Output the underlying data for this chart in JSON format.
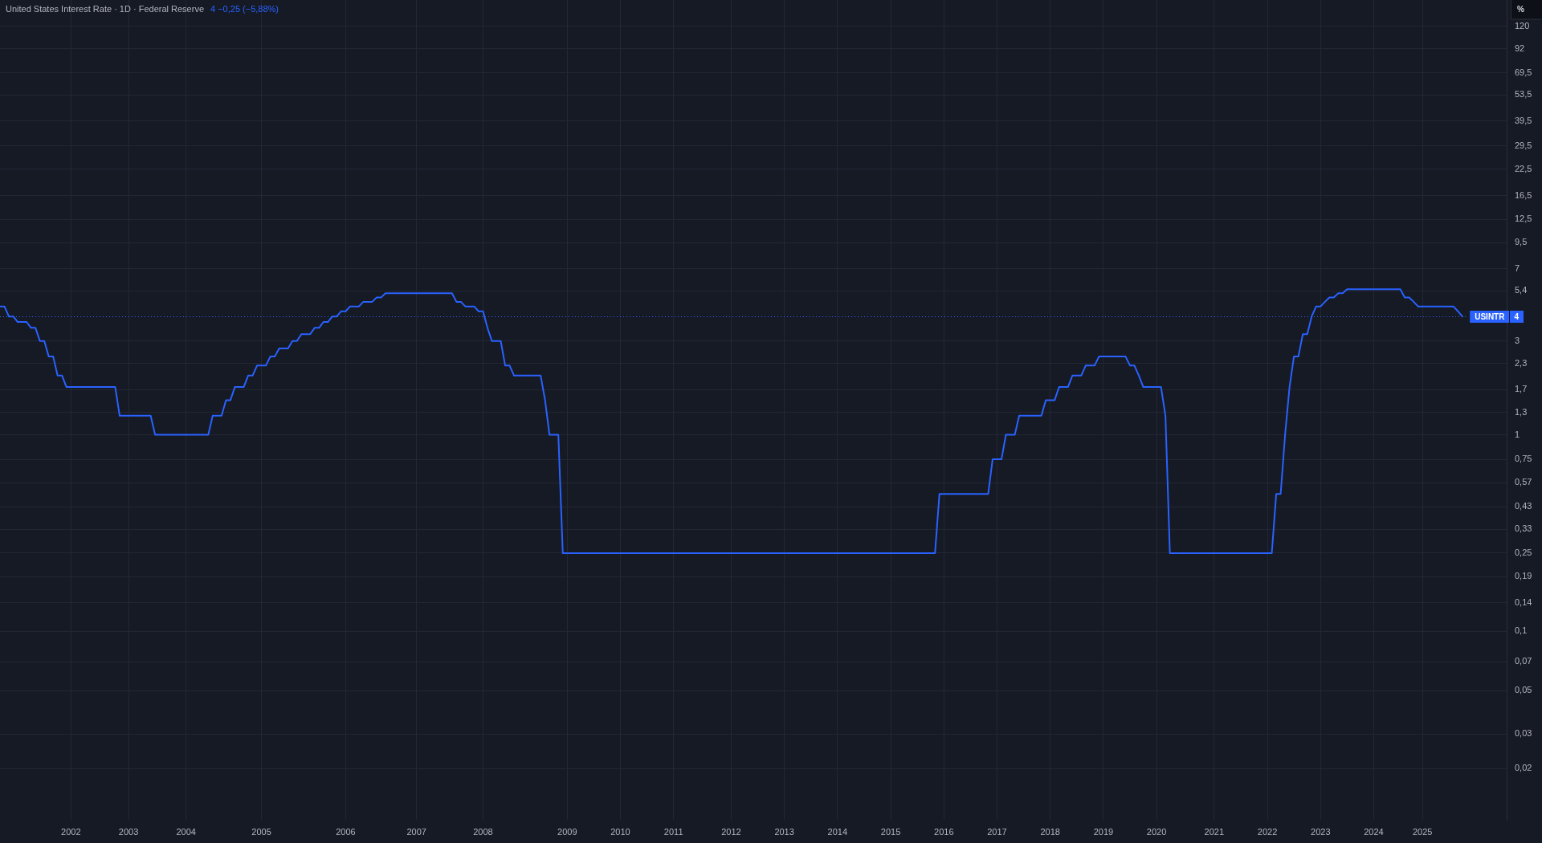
{
  "chart_data": {
    "type": "line",
    "title": "United States Interest Rate · 1D · Federal Reserve",
    "subtitle": "4 −0,25 (−5,88%)",
    "ylabel": "%",
    "categories": [
      null,
      null,
      null,
      null,
      null,
      null,
      null,
      null,
      null,
      null,
      null,
      null,
      null,
      null,
      null,
      null,
      "2002",
      null,
      null,
      null,
      null,
      null,
      null,
      null,
      null,
      null,
      null,
      null,
      null,
      "2003",
      null,
      null,
      null,
      null,
      null,
      null,
      null,
      null,
      null,
      null,
      null,
      null,
      "2004",
      null,
      null,
      null,
      null,
      null,
      null,
      null,
      null,
      null,
      null,
      null,
      null,
      null,
      null,
      null,
      null,
      "2005",
      null,
      null,
      null,
      null,
      null,
      null,
      null,
      null,
      null,
      null,
      null,
      null,
      null,
      null,
      null,
      null,
      null,
      null,
      "2006",
      null,
      null,
      null,
      null,
      null,
      null,
      null,
      null,
      null,
      null,
      null,
      null,
      null,
      null,
      null,
      "2007",
      null,
      null,
      null,
      null,
      null,
      null,
      null,
      null,
      null,
      null,
      null,
      null,
      null,
      null,
      "2008",
      null,
      null,
      null,
      null,
      null,
      null,
      null,
      null,
      null,
      null,
      null,
      null,
      null,
      null,
      null,
      null,
      null,
      null,
      "2009",
      null,
      null,
      null,
      null,
      null,
      null,
      null,
      null,
      null,
      null,
      null,
      "2010",
      null,
      null,
      null,
      null,
      null,
      null,
      null,
      null,
      null,
      null,
      null,
      "2011",
      null,
      null,
      null,
      null,
      null,
      null,
      null,
      null,
      null,
      null,
      null,
      null,
      "2012",
      null,
      null,
      null,
      null,
      null,
      null,
      null,
      null,
      null,
      null,
      null,
      "2013",
      null,
      null,
      null,
      null,
      null,
      null,
      null,
      null,
      null,
      null,
      null,
      "2014",
      null,
      null,
      null,
      null,
      null,
      null,
      null,
      null,
      null,
      null,
      null,
      "2015",
      null,
      null,
      null,
      null,
      null,
      null,
      null,
      null,
      null,
      null,
      null,
      "2016",
      null,
      null,
      null,
      null,
      null,
      null,
      null,
      null,
      null,
      null,
      null,
      "2017",
      null,
      null,
      null,
      null,
      null,
      null,
      null,
      null,
      null,
      null,
      null,
      "2018",
      null,
      null,
      null,
      null,
      null,
      null,
      null,
      null,
      null,
      null,
      null,
      "2019",
      null,
      null,
      null,
      null,
      null,
      null,
      null,
      null,
      null,
      null,
      null,
      "2020",
      null,
      null,
      null,
      null,
      null,
      null,
      null,
      null,
      null,
      null,
      null,
      null,
      "2021",
      null,
      null,
      null,
      null,
      null,
      null,
      null,
      null,
      null,
      null,
      null,
      "2022",
      null,
      null,
      null,
      null,
      null,
      null,
      null,
      null,
      null,
      null,
      null,
      "2023",
      null,
      null,
      null,
      null,
      null,
      null,
      null,
      null,
      null,
      null,
      null,
      "2024",
      null,
      null,
      null,
      null,
      null,
      null,
      null,
      null,
      null,
      null,
      "2025",
      null,
      null,
      null,
      null,
      null,
      null,
      null,
      null,
      null,
      null,
      null,
      null,
      null,
      null,
      null,
      null,
      null,
      null,
      null
    ],
    "values": [
      4.5,
      4.5,
      4,
      4,
      3.75,
      3.75,
      3.75,
      3.5,
      3.5,
      3,
      3,
      2.5,
      2.5,
      2,
      2,
      1.75,
      1.75,
      1.75,
      1.75,
      1.75,
      1.75,
      1.75,
      1.75,
      1.75,
      1.75,
      1.75,
      1.75,
      1.25,
      1.25,
      1.25,
      1.25,
      1.25,
      1.25,
      1.25,
      1.25,
      1,
      1,
      1,
      1,
      1,
      1,
      1,
      1,
      1,
      1,
      1,
      1,
      1,
      1.25,
      1.25,
      1.25,
      1.5,
      1.5,
      1.75,
      1.75,
      1.75,
      2,
      2,
      2.25,
      2.25,
      2.25,
      2.5,
      2.5,
      2.75,
      2.75,
      2.75,
      3,
      3,
      3.25,
      3.25,
      3.25,
      3.5,
      3.5,
      3.75,
      3.75,
      4,
      4,
      4.25,
      4.25,
      4.5,
      4.5,
      4.5,
      4.75,
      4.75,
      4.75,
      5,
      5,
      5.25,
      5.25,
      5.25,
      5.25,
      5.25,
      5.25,
      5.25,
      5.25,
      5.25,
      5.25,
      5.25,
      5.25,
      5.25,
      5.25,
      5.25,
      5.25,
      4.75,
      4.75,
      4.5,
      4.5,
      4.5,
      4.25,
      4.25,
      3.5,
      3,
      3,
      3,
      2.25,
      2.25,
      2,
      2,
      2,
      2,
      2,
      2,
      2,
      1.5,
      1,
      1,
      1,
      0.25,
      0.25,
      0.25,
      0.25,
      0.25,
      0.25,
      0.25,
      0.25,
      0.25,
      0.25,
      0.25,
      0.25,
      0.25,
      0.25,
      0.25,
      0.25,
      0.25,
      0.25,
      0.25,
      0.25,
      0.25,
      0.25,
      0.25,
      0.25,
      0.25,
      0.25,
      0.25,
      0.25,
      0.25,
      0.25,
      0.25,
      0.25,
      0.25,
      0.25,
      0.25,
      0.25,
      0.25,
      0.25,
      0.25,
      0.25,
      0.25,
      0.25,
      0.25,
      0.25,
      0.25,
      0.25,
      0.25,
      0.25,
      0.25,
      0.25,
      0.25,
      0.25,
      0.25,
      0.25,
      0.25,
      0.25,
      0.25,
      0.25,
      0.25,
      0.25,
      0.25,
      0.25,
      0.25,
      0.25,
      0.25,
      0.25,
      0.25,
      0.25,
      0.25,
      0.25,
      0.25,
      0.25,
      0.25,
      0.25,
      0.25,
      0.25,
      0.25,
      0.25,
      0.25,
      0.25,
      0.25,
      0.25,
      0.25,
      0.25,
      0.25,
      0.5,
      0.5,
      0.5,
      0.5,
      0.5,
      0.5,
      0.5,
      0.5,
      0.5,
      0.5,
      0.5,
      0.5,
      0.75,
      0.75,
      0.75,
      1,
      1,
      1,
      1.25,
      1.25,
      1.25,
      1.25,
      1.25,
      1.25,
      1.5,
      1.5,
      1.5,
      1.75,
      1.75,
      1.75,
      2,
      2,
      2,
      2.25,
      2.25,
      2.25,
      2.5,
      2.5,
      2.5,
      2.5,
      2.5,
      2.5,
      2.5,
      2.25,
      2.25,
      2,
      1.75,
      1.75,
      1.75,
      1.75,
      1.75,
      1.25,
      0.25,
      0.25,
      0.25,
      0.25,
      0.25,
      0.25,
      0.25,
      0.25,
      0.25,
      0.25,
      0.25,
      0.25,
      0.25,
      0.25,
      0.25,
      0.25,
      0.25,
      0.25,
      0.25,
      0.25,
      0.25,
      0.25,
      0.25,
      0.25,
      0.5,
      0.5,
      1,
      1.75,
      2.5,
      2.5,
      3.25,
      3.25,
      4,
      4.5,
      4.5,
      4.75,
      5,
      5,
      5.25,
      5.25,
      5.5,
      5.5,
      5.5,
      5.5,
      5.5,
      5.5,
      5.5,
      5.5,
      5.5,
      5.5,
      5.5,
      5.5,
      5.5,
      5,
      5,
      4.75,
      4.5,
      4.5,
      4.5,
      4.5,
      4.5,
      4.5,
      4.5,
      4.5,
      4.5,
      4.25,
      4,
      null,
      null,
      null,
      null,
      null,
      null,
      null,
      null,
      null,
      null
    ],
    "color": "#2962ff",
    "log": true,
    "ylim": [
      0.011,
      163
    ],
    "yticks": [
      {
        "value": 0.02,
        "label": "0,02"
      },
      {
        "value": 0.03,
        "label": "0,03"
      },
      {
        "value": 0.05,
        "label": "0,05"
      },
      {
        "value": 0.07,
        "label": "0,07"
      },
      {
        "value": 0.1,
        "label": "0,1"
      },
      {
        "value": 0.14,
        "label": "0,14"
      },
      {
        "value": 0.19,
        "label": "0,19"
      },
      {
        "value": 0.25,
        "label": "0,25"
      },
      {
        "value": 0.33,
        "label": "0,33"
      },
      {
        "value": 0.43,
        "label": "0,43"
      },
      {
        "value": 0.57,
        "label": "0,57"
      },
      {
        "value": 0.75,
        "label": "0,75"
      },
      1,
      {
        "value": 1.3,
        "label": "1,3"
      },
      {
        "value": 1.7,
        "label": "1,7"
      },
      {
        "value": 2.3,
        "label": "2,3"
      },
      3,
      {
        "value": 5.4,
        "label": "5,4"
      },
      7,
      {
        "value": 9.5,
        "label": "9,5"
      },
      {
        "value": 12.5,
        "label": "12,5"
      },
      {
        "value": 16.5,
        "label": "16,5"
      },
      {
        "value": 22.5,
        "label": "22,5"
      },
      {
        "value": 29.5,
        "label": "29,5"
      },
      {
        "value": 39.5,
        "label": "39,5"
      },
      {
        "value": 53.5,
        "label": "53,5"
      },
      {
        "value": 69.5,
        "label": "69,5"
      },
      92,
      120
    ],
    "grid": true,
    "marker": "none",
    "line_style": "solid",
    "ref_lines": [
      {
        "axis": "y",
        "value": 4,
        "label": "USINTR 4",
        "color": "#2962ff",
        "line_style": "dotted"
      }
    ]
  }
}
